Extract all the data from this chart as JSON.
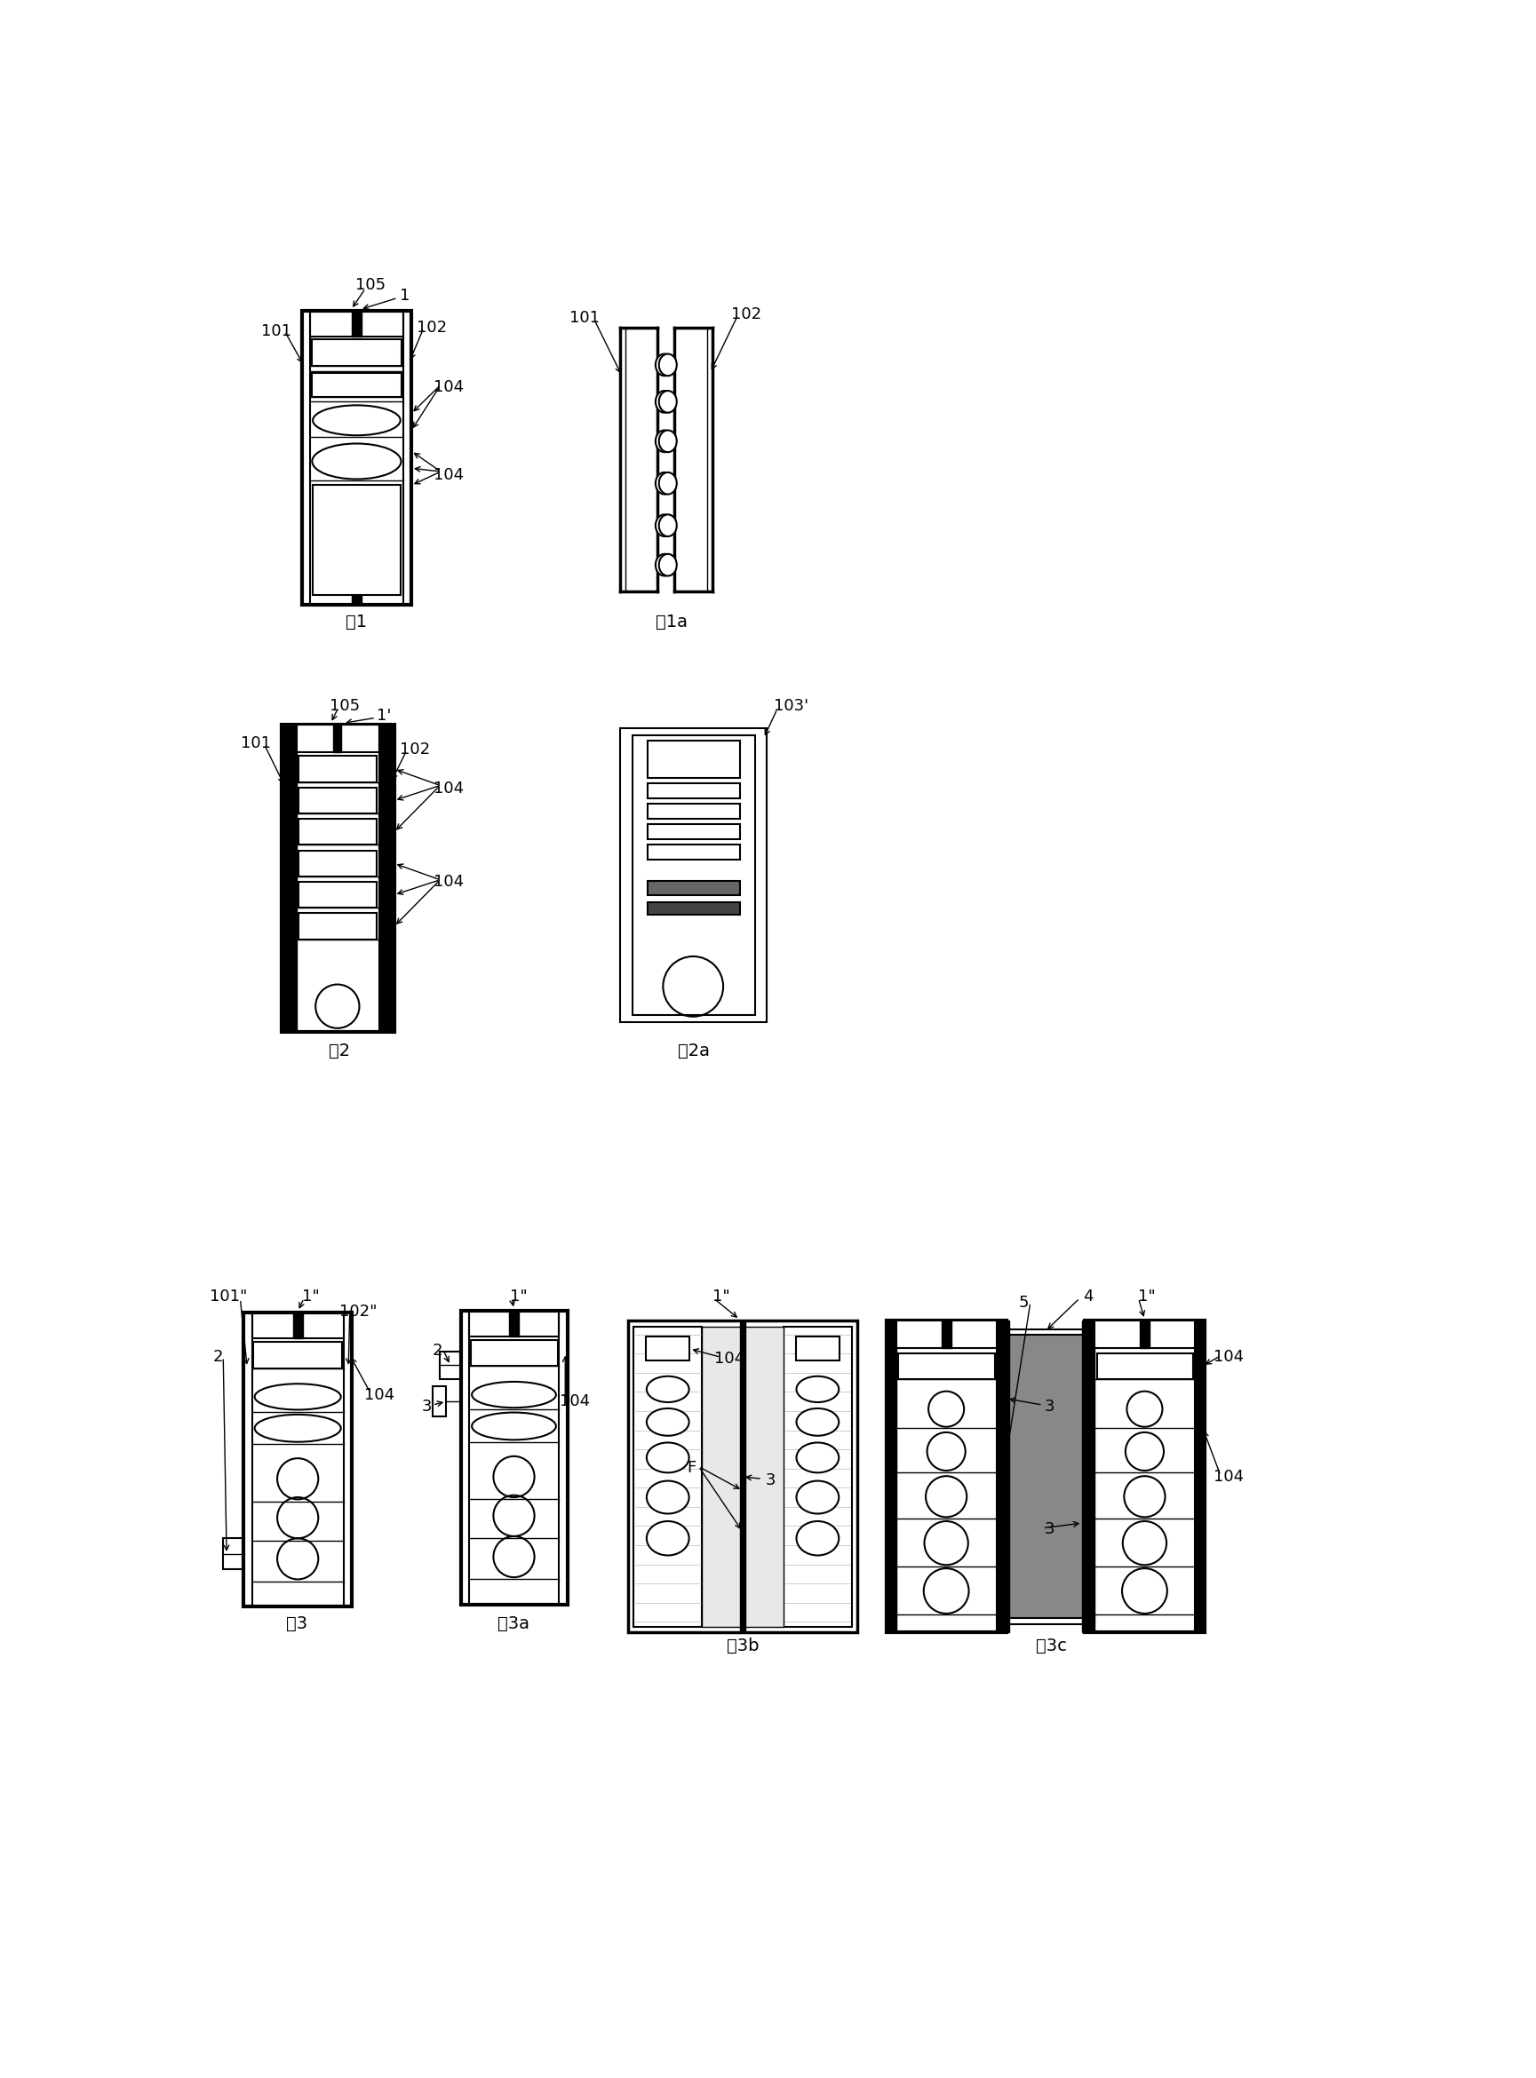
{
  "bg_color": "#ffffff",
  "fig_labels": {
    "fig1": "图1",
    "fig1a": "图1a",
    "fig2": "图2",
    "fig2a": "图2a",
    "fig3": "图3",
    "fig3a": "图3a",
    "fig3b": "图3b",
    "fig3c": "图3c"
  },
  "lw_outer": 2.5,
  "lw_inner": 1.5,
  "lw_thin": 1.0,
  "fs_label": 13,
  "fs_fig": 14
}
